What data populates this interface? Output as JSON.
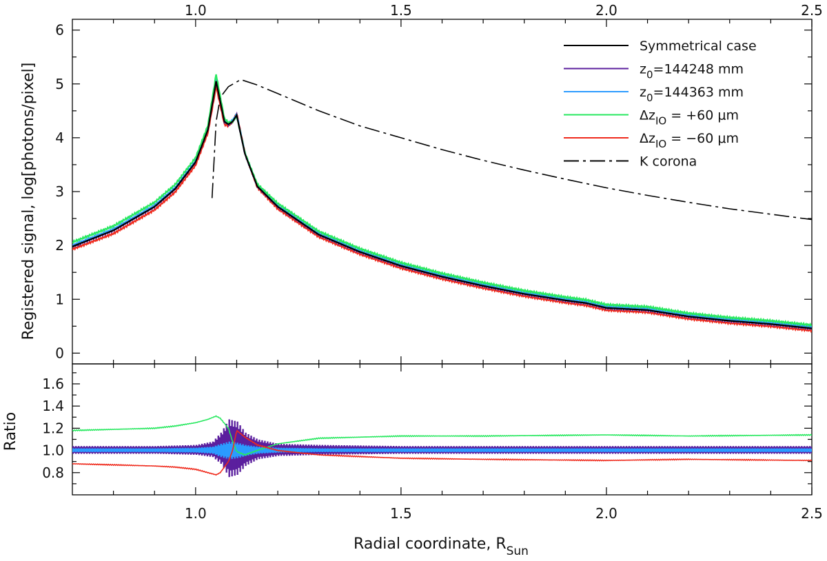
{
  "chart_data": [
    {
      "panel": "top",
      "type": "line",
      "xlabel_top_ticks": [
        "1.0",
        "1.5",
        "2.0",
        "2.5"
      ],
      "ylabel": "Registered signal, log[photons/pixel]",
      "xlim": [
        0.7,
        2.5
      ],
      "ylim": [
        -0.2,
        6.2
      ],
      "yticks": [
        0,
        1,
        2,
        3,
        4,
        5,
        6
      ],
      "ytick_labels": [
        "0",
        "1",
        "2",
        "3",
        "4",
        "5",
        "6"
      ],
      "legend_position": "top-right",
      "legend": [
        {
          "label": "Symmetrical case",
          "color": "#000000",
          "style": "solid"
        },
        {
          "label_main": "z",
          "label_sub": "0",
          "label_rest": "=144248 mm",
          "color": "#5b1f9e",
          "style": "solid"
        },
        {
          "label_main": "z",
          "label_sub": "0",
          "label_rest": "=144363 mm",
          "color": "#2b9bff",
          "style": "solid"
        },
        {
          "label_main": "Δz",
          "label_sub": "IO",
          "label_rest": " = +60 μm",
          "color": "#27e85f",
          "style": "solid"
        },
        {
          "label_main": "Δz",
          "label_sub": "IO",
          "label_rest": " = −60 μm",
          "color": "#ef2a1c",
          "style": "solid"
        },
        {
          "label": "K corona",
          "color": "#000000",
          "style": "dashdot"
        }
      ],
      "series": [
        {
          "name": "Symmetrical case",
          "color": "#000000",
          "x": [
            0.7,
            0.8,
            0.9,
            0.95,
            1.0,
            1.03,
            1.05,
            1.07,
            1.08,
            1.09,
            1.1,
            1.12,
            1.15,
            1.2,
            1.3,
            1.4,
            1.5,
            1.6,
            1.7,
            1.8,
            1.9,
            1.95,
            2.0,
            2.1,
            2.2,
            2.3,
            2.4,
            2.5
          ],
          "y": [
            1.98,
            2.28,
            2.72,
            3.05,
            3.55,
            4.15,
            5.05,
            4.3,
            4.25,
            4.3,
            4.42,
            3.7,
            3.1,
            2.72,
            2.2,
            1.88,
            1.62,
            1.42,
            1.25,
            1.1,
            0.98,
            0.93,
            0.84,
            0.8,
            0.68,
            0.6,
            0.54,
            0.46
          ]
        },
        {
          "name": "z0=144248 mm",
          "color": "#5b1f9e",
          "x": [
            0.7,
            0.8,
            0.9,
            0.95,
            1.0,
            1.03,
            1.05,
            1.07,
            1.08,
            1.09,
            1.1,
            1.12,
            1.15,
            1.2,
            1.3,
            1.4,
            1.5,
            1.6,
            1.7,
            1.8,
            1.9,
            1.95,
            2.0,
            2.1,
            2.2,
            2.3,
            2.4,
            2.5
          ],
          "y": [
            1.98,
            2.28,
            2.72,
            3.05,
            3.55,
            4.15,
            5.05,
            4.3,
            4.25,
            4.3,
            4.42,
            3.7,
            3.1,
            2.72,
            2.2,
            1.88,
            1.62,
            1.42,
            1.25,
            1.1,
            0.98,
            0.93,
            0.84,
            0.8,
            0.68,
            0.6,
            0.54,
            0.46
          ]
        },
        {
          "name": "z0=144363 mm",
          "color": "#2b9bff",
          "x": [
            0.7,
            0.8,
            0.9,
            0.95,
            1.0,
            1.03,
            1.05,
            1.07,
            1.08,
            1.09,
            1.1,
            1.12,
            1.15,
            1.2,
            1.3,
            1.4,
            1.5,
            1.6,
            1.7,
            1.8,
            1.9,
            1.95,
            2.0,
            2.1,
            2.2,
            2.3,
            2.4,
            2.5
          ],
          "y": [
            2.0,
            2.3,
            2.74,
            3.07,
            3.57,
            4.17,
            5.08,
            4.32,
            4.27,
            4.32,
            4.44,
            3.72,
            3.12,
            2.74,
            2.22,
            1.9,
            1.64,
            1.44,
            1.27,
            1.12,
            1.0,
            0.95,
            0.86,
            0.82,
            0.7,
            0.62,
            0.56,
            0.48
          ]
        },
        {
          "name": "Δz_IO = +60 μm",
          "color": "#27e85f",
          "x": [
            0.7,
            0.8,
            0.9,
            0.95,
            1.0,
            1.03,
            1.05,
            1.07,
            1.08,
            1.09,
            1.1,
            1.12,
            1.15,
            1.2,
            1.3,
            1.4,
            1.5,
            1.6,
            1.7,
            1.8,
            1.9,
            1.95,
            2.0,
            2.1,
            2.2,
            2.3,
            2.4,
            2.5
          ],
          "y": [
            2.06,
            2.36,
            2.8,
            3.13,
            3.63,
            4.23,
            5.18,
            4.36,
            4.28,
            4.3,
            4.4,
            3.72,
            3.14,
            2.78,
            2.26,
            1.94,
            1.68,
            1.48,
            1.31,
            1.16,
            1.04,
            0.99,
            0.9,
            0.86,
            0.74,
            0.66,
            0.6,
            0.52
          ]
        },
        {
          "name": "Δz_IO = −60 μm",
          "color": "#ef2a1c",
          "x": [
            0.7,
            0.8,
            0.9,
            0.95,
            1.0,
            1.03,
            1.05,
            1.07,
            1.08,
            1.09,
            1.1,
            1.12,
            1.15,
            1.2,
            1.3,
            1.4,
            1.5,
            1.6,
            1.7,
            1.8,
            1.9,
            1.95,
            2.0,
            2.1,
            2.2,
            2.3,
            2.4,
            2.5
          ],
          "y": [
            1.93,
            2.22,
            2.66,
            2.99,
            3.49,
            4.09,
            4.95,
            4.25,
            4.22,
            4.3,
            4.46,
            3.72,
            3.08,
            2.68,
            2.16,
            1.84,
            1.58,
            1.38,
            1.21,
            1.06,
            0.94,
            0.89,
            0.8,
            0.76,
            0.64,
            0.56,
            0.5,
            0.42
          ]
        },
        {
          "name": "K corona",
          "color": "#000000",
          "style": "dashdot",
          "x": [
            1.04,
            1.045,
            1.05,
            1.06,
            1.08,
            1.11,
            1.15,
            1.2,
            1.3,
            1.4,
            1.5,
            1.6,
            1.7,
            1.8,
            1.9,
            2.0,
            2.1,
            2.2,
            2.3,
            2.4,
            2.5
          ],
          "y": [
            2.88,
            3.6,
            4.3,
            4.75,
            4.95,
            5.08,
            4.98,
            4.82,
            4.5,
            4.22,
            4.0,
            3.78,
            3.58,
            3.4,
            3.23,
            3.07,
            2.93,
            2.8,
            2.68,
            2.58,
            2.48
          ]
        }
      ]
    },
    {
      "panel": "bottom",
      "type": "line",
      "xlabel": "Radial coordinate, R",
      "xlabel_sub": "Sun",
      "ylabel": "Ratio",
      "xlim": [
        0.7,
        2.5
      ],
      "ylim": [
        0.6,
        1.78
      ],
      "xticks": [
        1.0,
        1.5,
        2.0,
        2.5
      ],
      "xtick_labels": [
        "1.0",
        "1.5",
        "2.0",
        "2.5"
      ],
      "yticks": [
        0.8,
        1.0,
        1.2,
        1.4,
        1.6
      ],
      "ytick_labels": [
        "0.8",
        "1.0",
        "1.2",
        "1.4",
        "1.6"
      ],
      "series": [
        {
          "name": "z0=144248 mm band",
          "color": "#5b1f9e",
          "type": "band",
          "x": [
            0.7,
            0.9,
            1.0,
            1.04,
            1.06,
            1.08,
            1.1,
            1.12,
            1.15,
            1.2,
            1.3,
            1.5,
            2.0,
            2.5
          ],
          "y_low": [
            0.97,
            0.97,
            0.96,
            0.94,
            0.88,
            0.76,
            0.78,
            0.86,
            0.92,
            0.95,
            0.96,
            0.97,
            0.97,
            0.97
          ],
          "y_high": [
            1.04,
            1.04,
            1.05,
            1.08,
            1.16,
            1.28,
            1.26,
            1.16,
            1.1,
            1.06,
            1.05,
            1.04,
            1.04,
            1.04
          ]
        },
        {
          "name": "z0=144363 mm band",
          "color": "#2b9bff",
          "type": "band",
          "x": [
            0.7,
            0.9,
            1.0,
            1.04,
            1.06,
            1.08,
            1.1,
            1.12,
            1.15,
            1.2,
            1.3,
            1.5,
            2.0,
            2.5
          ],
          "y_low": [
            0.985,
            0.985,
            0.98,
            0.97,
            0.94,
            0.92,
            0.93,
            0.95,
            0.97,
            0.98,
            0.985,
            0.985,
            0.985,
            0.985
          ],
          "y_high": [
            1.02,
            1.02,
            1.025,
            1.035,
            1.06,
            1.08,
            1.07,
            1.05,
            1.035,
            1.025,
            1.02,
            1.02,
            1.02,
            1.02
          ]
        },
        {
          "name": "Δz_IO = +60 μm",
          "color": "#27e85f",
          "x": [
            0.7,
            0.8,
            0.9,
            0.95,
            1.0,
            1.03,
            1.05,
            1.06,
            1.08,
            1.09,
            1.1,
            1.12,
            1.15,
            1.2,
            1.3,
            1.5,
            1.7,
            2.0,
            2.2,
            2.5
          ],
          "y": [
            1.18,
            1.19,
            1.2,
            1.22,
            1.25,
            1.28,
            1.31,
            1.29,
            1.2,
            1.08,
            0.99,
            0.96,
            1.0,
            1.06,
            1.11,
            1.13,
            1.13,
            1.14,
            1.13,
            1.14
          ]
        },
        {
          "name": "Δz_IO = −60 μm",
          "color": "#ef2a1c",
          "x": [
            0.7,
            0.8,
            0.9,
            0.95,
            1.0,
            1.03,
            1.05,
            1.06,
            1.08,
            1.09,
            1.1,
            1.12,
            1.15,
            1.2,
            1.3,
            1.5,
            1.7,
            2.0,
            2.2,
            2.5
          ],
          "y": [
            0.88,
            0.87,
            0.86,
            0.85,
            0.83,
            0.8,
            0.78,
            0.8,
            0.9,
            1.0,
            1.18,
            1.12,
            1.05,
            1.0,
            0.96,
            0.93,
            0.92,
            0.91,
            0.92,
            0.91
          ]
        }
      ]
    }
  ]
}
